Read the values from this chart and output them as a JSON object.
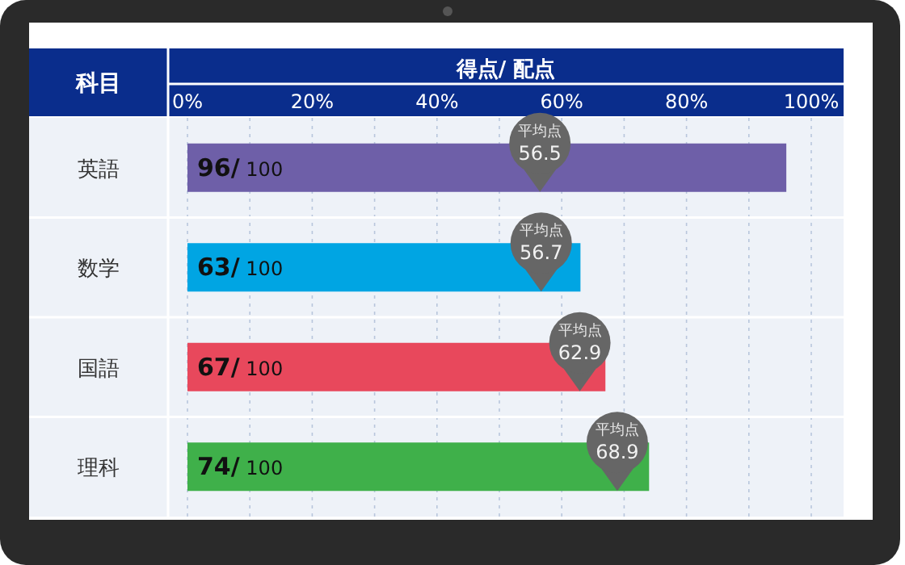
{
  "chart_data": {
    "type": "bar",
    "orientation": "horizontal",
    "xlabel": "得点/ 配点",
    "ylabel": "科目",
    "categories": [
      "英語",
      "数学",
      "国語",
      "理科"
    ],
    "xlim": [
      0,
      100
    ],
    "xticks": [
      {
        "value": 0,
        "label": "0%"
      },
      {
        "value": 10,
        "label": null
      },
      {
        "value": 20,
        "label": "20%"
      },
      {
        "value": 30,
        "label": null
      },
      {
        "value": 40,
        "label": "40%"
      },
      {
        "value": 50,
        "label": null
      },
      {
        "value": 60,
        "label": "60%"
      },
      {
        "value": 70,
        "label": null
      },
      {
        "value": 80,
        "label": "80%"
      },
      {
        "value": 90,
        "label": null
      },
      {
        "value": 100,
        "label": "100%"
      }
    ],
    "grid": "x",
    "series": [
      {
        "values": [
          96,
          63,
          67,
          74
        ],
        "colors": [
          "#6e5fa8",
          "#00a5e3",
          "#e8485c",
          "#3fb04a"
        ],
        "value_labels": [
          "**96/** 100",
          "**63/** 100",
          "**67/** 100",
          "**74/** 100"
        ]
      },
      {
        "type": "scatter",
        "name": "平均点",
        "color": "#666666",
        "values": [
          56.5,
          56.7,
          62.9,
          68.9
        ],
        "value_labels": [
          "56.5",
          "56.7",
          "62.9",
          "68.9"
        ]
      }
    ]
  }
}
